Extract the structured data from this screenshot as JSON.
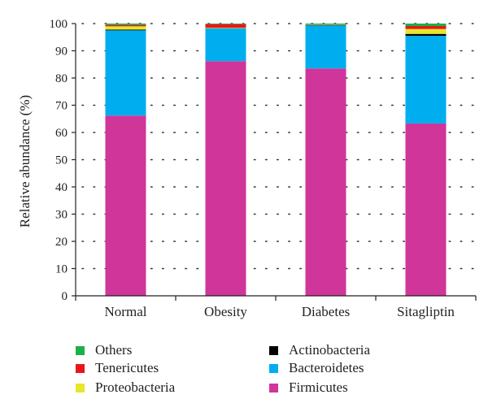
{
  "chart_data": {
    "type": "bar",
    "stacked": true,
    "categories": [
      "Normal",
      "Obesity",
      "Diabetes",
      "Sitagliptin"
    ],
    "ylabel": "Relative abundance (%)",
    "xlabel": "",
    "ylim": [
      0,
      100
    ],
    "yticks": [
      "0",
      "10",
      "20",
      "30",
      "40",
      "50",
      "60",
      "70",
      "80",
      "90",
      "100"
    ],
    "grid": "dotted horizontal",
    "legend_position": "bottom",
    "series": [
      {
        "name": "Firmicutes",
        "color": "#D0359A",
        "values": [
          66.2,
          86.2,
          83.5,
          63.3
        ]
      },
      {
        "name": "Bacteroidetes",
        "color": "#00AEEF",
        "values": [
          31.3,
          12.0,
          15.8,
          32.2
        ]
      },
      {
        "name": "Actinobacteria",
        "color": "#000000",
        "values": [
          0.3,
          0.1,
          0.1,
          0.7
        ]
      },
      {
        "name": "Proteobacteria",
        "color": "#E6E62A",
        "values": [
          1.2,
          0.2,
          0.1,
          1.8
        ]
      },
      {
        "name": "Tenericutes",
        "color": "#E8161B",
        "values": [
          0.5,
          1.3,
          0.1,
          1.1
        ]
      },
      {
        "name": "Others",
        "color": "#1BB04A",
        "values": [
          0.5,
          0.2,
          0.4,
          0.9
        ]
      }
    ],
    "legend": [
      {
        "name": "Others",
        "color": "#1BB04A"
      },
      {
        "name": "Actinobacteria",
        "color": "#000000"
      },
      {
        "name": "Tenericutes",
        "color": "#E8161B"
      },
      {
        "name": "Bacteroidetes",
        "color": "#00AEEF"
      },
      {
        "name": "Proteobacteria",
        "color": "#E6E62A"
      },
      {
        "name": "Firmicutes",
        "color": "#D0359A"
      }
    ]
  }
}
